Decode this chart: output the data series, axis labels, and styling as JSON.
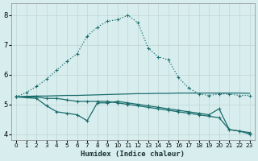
{
  "xlabel": "Humidex (Indice chaleur)",
  "bg_color": "#d8eeee",
  "grid_color": "#c0d4d4",
  "line_color": "#1a6b6b",
  "xlim": [
    -0.5,
    23.5
  ],
  "ylim": [
    3.8,
    8.4
  ],
  "yticks": [
    4,
    5,
    6,
    7,
    8
  ],
  "xticks": [
    0,
    1,
    2,
    3,
    4,
    5,
    6,
    7,
    8,
    9,
    10,
    11,
    12,
    13,
    14,
    15,
    16,
    17,
    18,
    19,
    20,
    21,
    22,
    23
  ],
  "curve1_x": [
    0,
    1,
    2,
    3,
    4,
    5,
    6,
    7,
    8,
    9,
    10,
    11,
    12,
    13,
    14,
    15,
    16,
    17,
    18,
    19,
    20,
    21,
    22,
    23
  ],
  "curve1_y": [
    5.25,
    5.4,
    5.6,
    5.85,
    6.15,
    6.45,
    6.7,
    7.3,
    7.6,
    7.8,
    7.85,
    8.0,
    7.75,
    6.9,
    6.6,
    6.5,
    5.9,
    5.55,
    5.35,
    5.3,
    5.35,
    5.35,
    5.3,
    5.3
  ],
  "curve2_x": [
    0,
    2,
    3,
    4,
    5,
    6,
    7,
    8,
    9,
    10,
    11,
    12,
    13,
    14,
    15,
    16,
    17,
    18,
    19,
    20,
    21,
    22,
    23
  ],
  "curve2_y": [
    5.25,
    5.2,
    4.95,
    4.75,
    4.7,
    4.65,
    4.45,
    5.05,
    5.05,
    5.1,
    5.05,
    5.0,
    4.95,
    4.9,
    4.85,
    4.8,
    4.75,
    4.7,
    4.65,
    4.85,
    4.15,
    4.1,
    4.05
  ],
  "curve3_x": [
    0,
    1,
    2,
    3,
    4,
    5,
    6,
    7,
    8,
    9,
    10,
    11,
    12,
    13,
    14,
    15,
    16,
    17,
    18,
    19,
    20,
    21,
    22,
    23
  ],
  "curve3_y": [
    5.25,
    5.25,
    5.25,
    5.2,
    5.2,
    5.15,
    5.1,
    5.1,
    5.1,
    5.1,
    5.05,
    5.0,
    4.95,
    4.9,
    4.85,
    4.8,
    4.75,
    4.7,
    4.65,
    4.6,
    4.55,
    4.15,
    4.1,
    4.0
  ],
  "curve4_x": [
    0,
    1,
    2,
    3,
    4,
    5,
    6,
    7,
    8,
    9,
    10,
    11,
    12,
    13,
    14,
    15,
    16,
    17,
    18,
    19,
    20,
    21,
    22,
    23
  ],
  "curve4_y": [
    5.25,
    5.27,
    5.28,
    5.28,
    5.29,
    5.3,
    5.3,
    5.31,
    5.32,
    5.33,
    5.34,
    5.35,
    5.36,
    5.36,
    5.37,
    5.37,
    5.38,
    5.38,
    5.38,
    5.38,
    5.38,
    5.38,
    5.38,
    5.37
  ]
}
